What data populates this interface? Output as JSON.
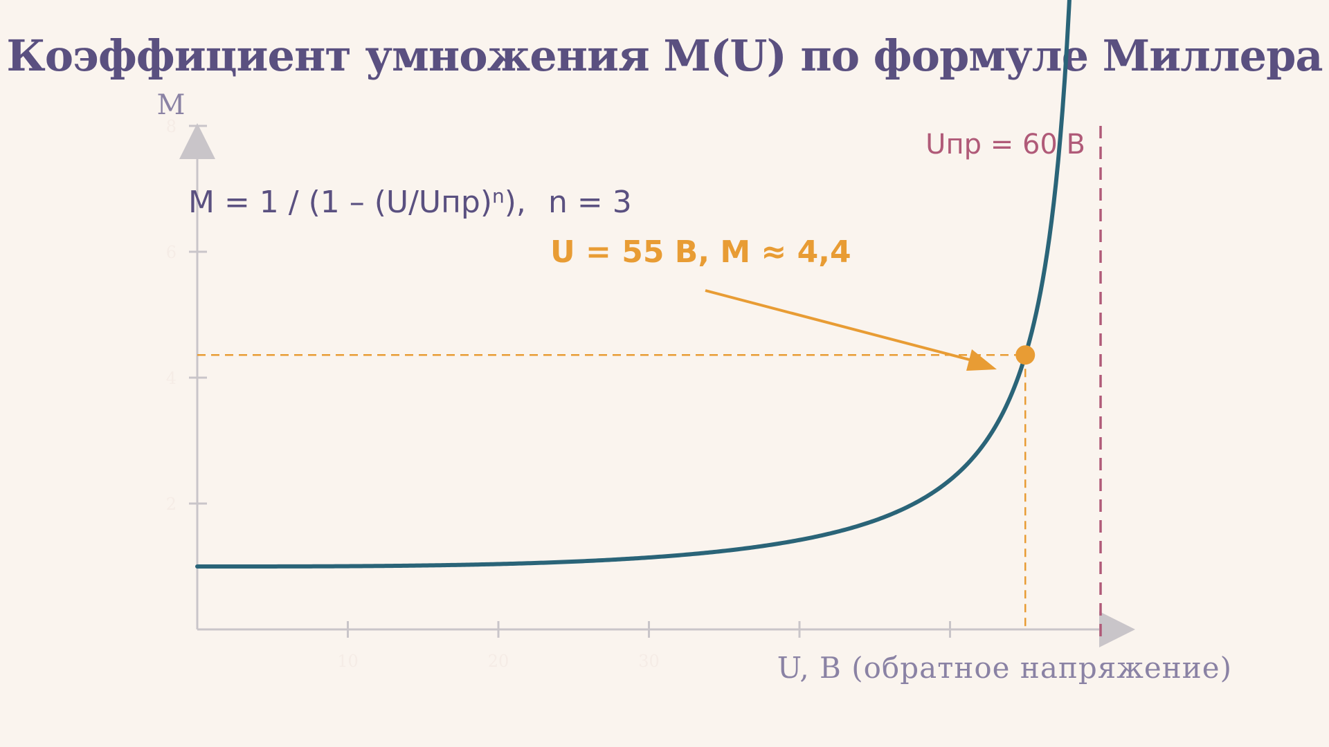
{
  "title": "Коэффициент умножения M(U) по формуле Миллера",
  "chart_data": {
    "type": "line",
    "title": "Коэффициент умножения M(U) по формуле Миллера",
    "xlabel": "U, В (обратное напряжение)",
    "ylabel": "M",
    "xlim": [
      0,
      60
    ],
    "ylim": [
      0,
      9
    ],
    "xticks": [
      10,
      20,
      30,
      40,
      50
    ],
    "xtick_labels": [
      "10",
      "20",
      "30",
      "",
      ""
    ],
    "yticks": [
      2,
      4,
      6,
      8
    ],
    "ytick_labels": [
      "2",
      "4",
      "6",
      "8"
    ],
    "grid": false,
    "breakdown_voltage": 60,
    "exponent_n": 3,
    "series": [
      {
        "x": [
          0,
          5,
          10,
          15,
          20,
          25,
          30,
          35,
          40,
          45,
          48,
          50,
          52,
          54,
          55,
          56,
          57,
          58.2
        ],
        "y": [
          1.0,
          1.0,
          1.0,
          1.02,
          1.04,
          1.08,
          1.14,
          1.25,
          1.42,
          1.73,
          2.05,
          2.37,
          2.87,
          3.69,
          4.36,
          5.35,
          6.9,
          8.0
        ],
        "color": "#2a6478"
      }
    ],
    "highlight_point": {
      "x": 55,
      "y": 4.36
    },
    "asymptote": {
      "x": 60,
      "label": "Uпр = 60 В",
      "color": "#b05a78"
    },
    "annotations": {
      "formula": "M = 1 / (1 – (U/Uпр)",
      "formula_exp": "n",
      "formula_tail": "),",
      "param": "n = 3",
      "point_label": "U = 55 В,  M  ≈  4,4"
    },
    "colors": {
      "curve": "#2a6478",
      "highlight": "#e89c34",
      "asymptote": "#b05a78",
      "axis": "#c9c5c9",
      "title": "#5a5080",
      "text": "#5a5080",
      "background": "#faf4ee"
    }
  }
}
